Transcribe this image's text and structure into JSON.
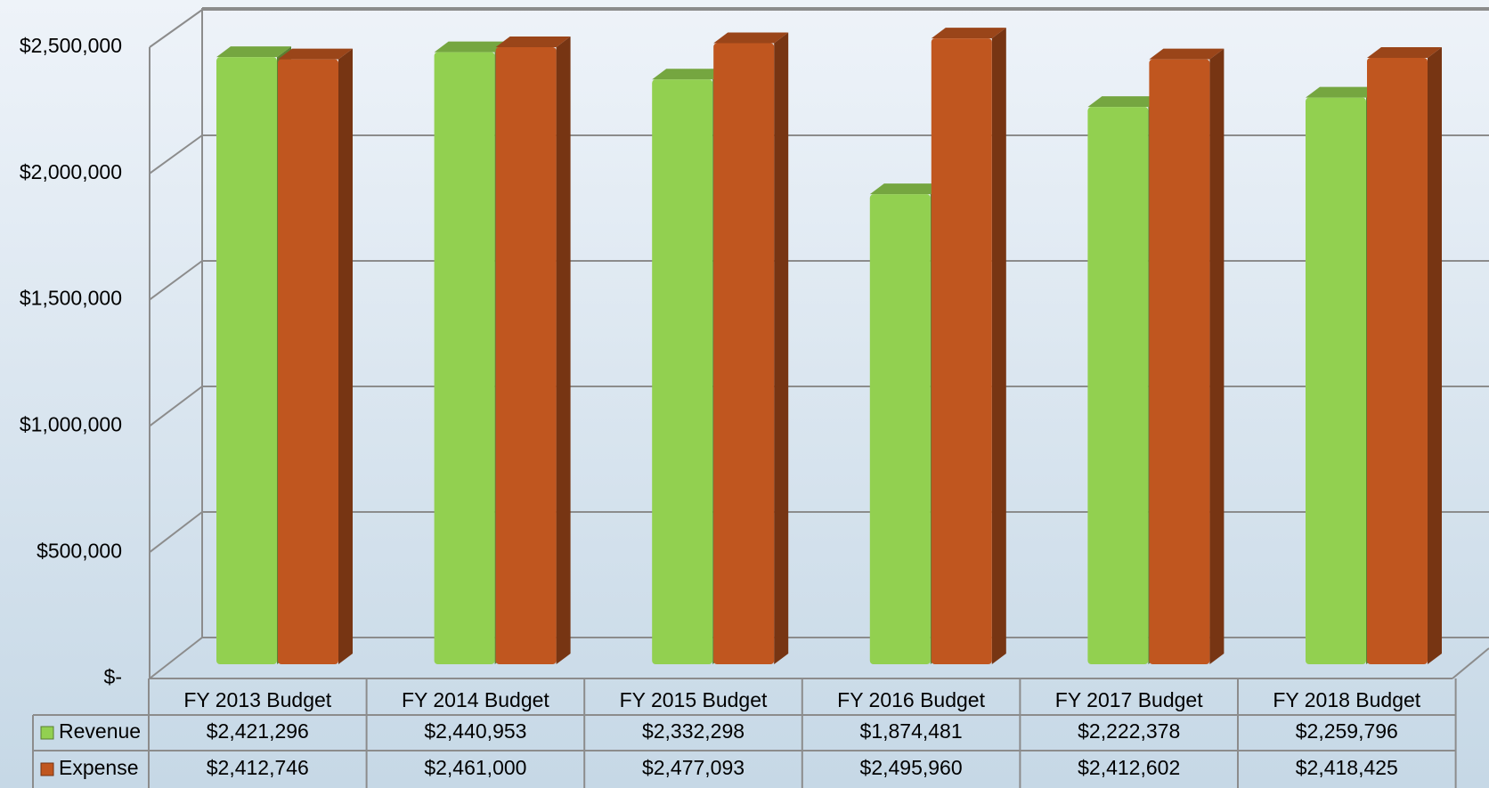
{
  "chart_data": {
    "type": "bar3d",
    "categories": [
      "FY 2013 Budget",
      "FY 2014 Budget",
      "FY 2015 Budget",
      "FY 2016 Budget",
      "FY 2017 Budget",
      "FY 2018 Budget"
    ],
    "series": [
      {
        "name": "Revenue",
        "color": "#92d050",
        "values": [
          2421296,
          2440953,
          2332298,
          1874481,
          2222378,
          2259796
        ],
        "value_labels": [
          "$2,421,296",
          "$2,440,953",
          "$2,332,298",
          "$1,874,481",
          "$2,222,378",
          "$2,259,796"
        ]
      },
      {
        "name": "Expense",
        "color": "#c0561f",
        "values": [
          2412746,
          2461000,
          2477093,
          2495960,
          2412602,
          2418425
        ],
        "value_labels": [
          "$2,412,746",
          "$2,461,000",
          "$2,477,093",
          "$2,495,960",
          "$2,412,602",
          "$2,418,425"
        ]
      }
    ],
    "ylim": [
      0,
      2500000
    ],
    "yticks": [
      {
        "value": 0,
        "label": "$-"
      },
      {
        "value": 500000,
        "label": "$500,000"
      },
      {
        "value": 1000000,
        "label": "$1,000,000"
      },
      {
        "value": 1500000,
        "label": "$1,500,000"
      },
      {
        "value": 2000000,
        "label": "$2,000,000"
      },
      {
        "value": 2500000,
        "label": "$2,500,000"
      }
    ],
    "grid": true
  }
}
